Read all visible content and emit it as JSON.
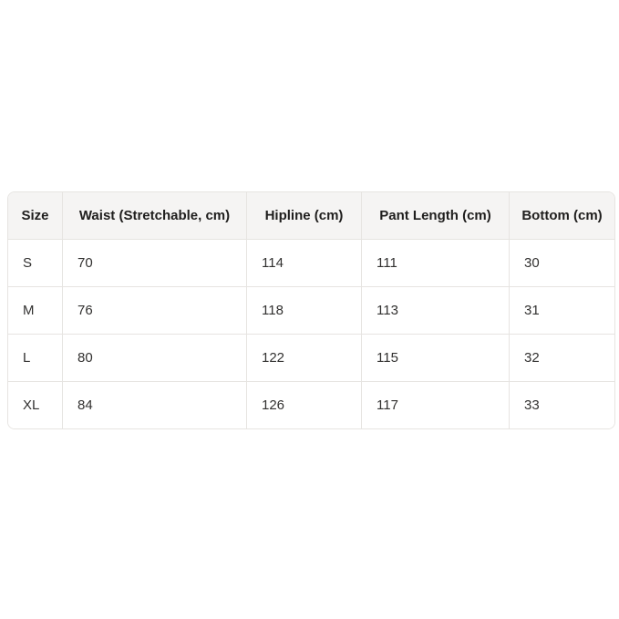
{
  "size_chart": {
    "headers": [
      "Size",
      "Waist (Stretchable, cm)",
      "Hipline (cm)",
      "Pant Length (cm)",
      "Bottom (cm)"
    ],
    "rows": [
      [
        "S",
        "70",
        "114",
        "111",
        "30"
      ],
      [
        "M",
        "76",
        "118",
        "113",
        "31"
      ],
      [
        "L",
        "80",
        "122",
        "115",
        "32"
      ],
      [
        "XL",
        "84",
        "126",
        "117",
        "33"
      ]
    ],
    "colors": {
      "header_background": "#f5f4f3",
      "border": "#e6e4e1",
      "header_text": "#1f1e1d",
      "body_text": "#323130",
      "page_background": "#ffffff"
    }
  }
}
